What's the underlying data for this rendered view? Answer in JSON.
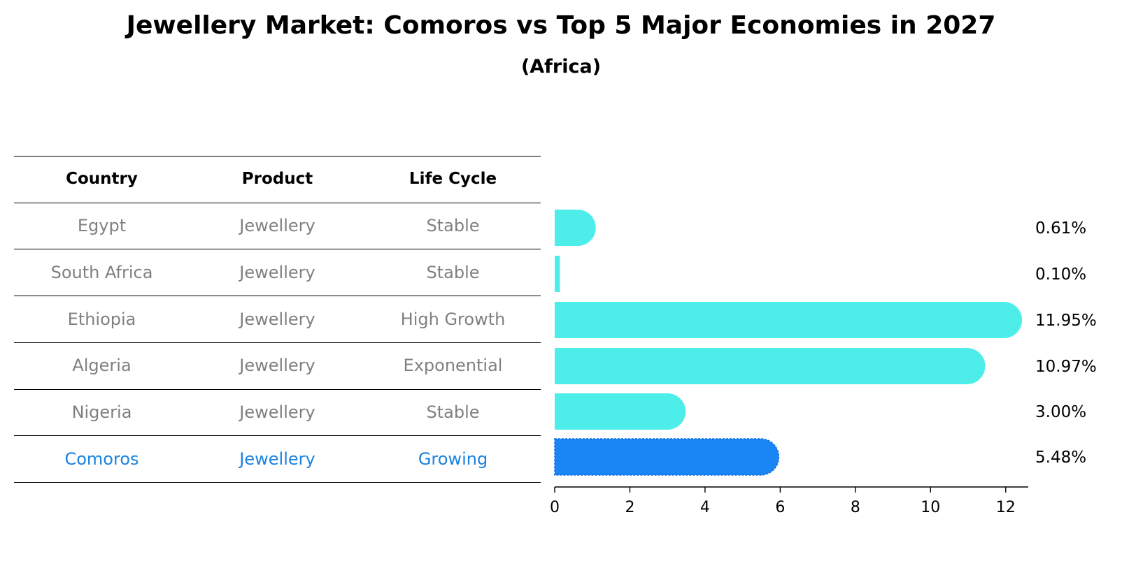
{
  "title": "Jewellery Market: Comoros vs Top 5 Major Economies in 2027",
  "subtitle": "(Africa)",
  "table": {
    "headers": [
      "Country",
      "Product",
      "Life Cycle"
    ],
    "rows": [
      {
        "country": "Egypt",
        "product": "Jewellery",
        "life_cycle": "Stable",
        "highlight": false
      },
      {
        "country": "South Africa",
        "product": "Jewellery",
        "life_cycle": "Stable",
        "highlight": false
      },
      {
        "country": "Ethiopia",
        "product": "Jewellery",
        "life_cycle": "High Growth",
        "highlight": false
      },
      {
        "country": "Algeria",
        "product": "Jewellery",
        "life_cycle": "Exponential",
        "highlight": false
      },
      {
        "country": "Nigeria",
        "product": "Jewellery",
        "life_cycle": "Stable",
        "highlight": false
      },
      {
        "country": "Comoros",
        "product": "Jewellery",
        "life_cycle": "Growing",
        "highlight": true
      }
    ]
  },
  "chart_data": {
    "type": "bar",
    "orientation": "horizontal",
    "categories": [
      "Egypt",
      "South Africa",
      "Ethiopia",
      "Algeria",
      "Nigeria",
      "Comoros"
    ],
    "values": [
      0.61,
      0.1,
      11.95,
      10.97,
      3.0,
      5.48
    ],
    "value_labels": [
      "0.61%",
      "0.10%",
      "11.95%",
      "10.97%",
      "3.00%",
      "5.48%"
    ],
    "xlim": [
      0,
      12.6
    ],
    "xticks": [
      0,
      2,
      4,
      6,
      8,
      10,
      12
    ],
    "highlight": "Comoros",
    "colors": {
      "default": "#4deeea",
      "highlight": "#1a85f5"
    }
  }
}
